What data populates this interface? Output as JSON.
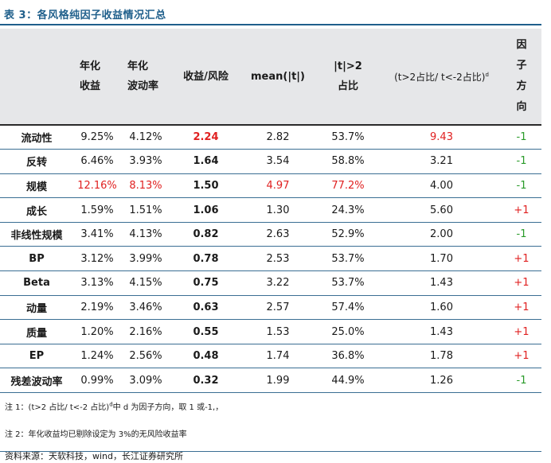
{
  "title": "表 3：各风格纯因子收益情况汇总",
  "table": {
    "headers": {
      "factor": "",
      "ann_return": [
        "年化",
        "收益"
      ],
      "ann_vol": [
        "年化",
        "波动率"
      ],
      "ret_risk": "收益/风险",
      "mean_t": "mean(|t|)",
      "t_gt2": [
        "|t|>2",
        "占比"
      ],
      "ratio": "(t>2占比/ t<-2占比)",
      "ratio_sup": "d",
      "direction": [
        "因",
        "子",
        "方",
        "向"
      ]
    },
    "rows": [
      {
        "factor": "流动性",
        "ann_return": "9.25%",
        "ann_vol": "4.12%",
        "ret_risk": "2.24",
        "mean_t": "2.82",
        "t_gt2": "53.7%",
        "ratio": "9.43",
        "direction": "-1"
      },
      {
        "factor": "反转",
        "ann_return": "6.46%",
        "ann_vol": "3.93%",
        "ret_risk": "1.64",
        "mean_t": "3.54",
        "t_gt2": "58.8%",
        "ratio": "3.21",
        "direction": "-1"
      },
      {
        "factor": "规模",
        "ann_return": "12.16%",
        "ann_vol": "8.13%",
        "ret_risk": "1.50",
        "mean_t": "4.97",
        "t_gt2": "77.2%",
        "ratio": "4.00",
        "direction": "-1"
      },
      {
        "factor": "成长",
        "ann_return": "1.59%",
        "ann_vol": "1.51%",
        "ret_risk": "1.06",
        "mean_t": "1.30",
        "t_gt2": "24.3%",
        "ratio": "5.60",
        "direction": "+1"
      },
      {
        "factor": "非线性规模",
        "ann_return": "3.41%",
        "ann_vol": "4.13%",
        "ret_risk": "0.82",
        "mean_t": "2.63",
        "t_gt2": "52.9%",
        "ratio": "2.00",
        "direction": "-1"
      },
      {
        "factor": "BP",
        "ann_return": "3.12%",
        "ann_vol": "3.99%",
        "ret_risk": "0.78",
        "mean_t": "2.53",
        "t_gt2": "53.7%",
        "ratio": "1.70",
        "direction": "+1"
      },
      {
        "factor": "Beta",
        "ann_return": "3.13%",
        "ann_vol": "4.15%",
        "ret_risk": "0.75",
        "mean_t": "3.22",
        "t_gt2": "53.7%",
        "ratio": "1.43",
        "direction": "+1"
      },
      {
        "factor": "动量",
        "ann_return": "2.19%",
        "ann_vol": "3.46%",
        "ret_risk": "0.63",
        "mean_t": "2.57",
        "t_gt2": "57.4%",
        "ratio": "1.60",
        "direction": "+1"
      },
      {
        "factor": "质量",
        "ann_return": "1.20%",
        "ann_vol": "2.16%",
        "ret_risk": "0.55",
        "mean_t": "1.53",
        "t_gt2": "25.0%",
        "ratio": "1.43",
        "direction": "+1"
      },
      {
        "factor": "EP",
        "ann_return": "1.24%",
        "ann_vol": "2.56%",
        "ret_risk": "0.48",
        "mean_t": "1.74",
        "t_gt2": "36.8%",
        "ratio": "1.78",
        "direction": "+1"
      },
      {
        "factor": "残差波动率",
        "ann_return": "0.99%",
        "ann_vol": "3.09%",
        "ret_risk": "0.32",
        "mean_t": "1.99",
        "t_gt2": "44.9%",
        "ratio": "1.26",
        "direction": "-1"
      }
    ]
  },
  "notes": {
    "note1_prefix": "注 1：(t>2 占比/ t<-2 占比)",
    "note1_sup": "d",
    "note1_suffix": "中 d 为因子方向，取 1 或-1,，",
    "note2": "注 2：年化收益均已剔除设定为 3%的无风险收益率"
  },
  "source": "资料来源：天软科技，wind，长江证券研究所",
  "colors": {
    "title": "#1f5f8b",
    "highlight_red": "#e02020",
    "positive_green": "#2a9b2a",
    "header_bg": "#e6e7e9",
    "rule_blue": "#3a6e93"
  }
}
